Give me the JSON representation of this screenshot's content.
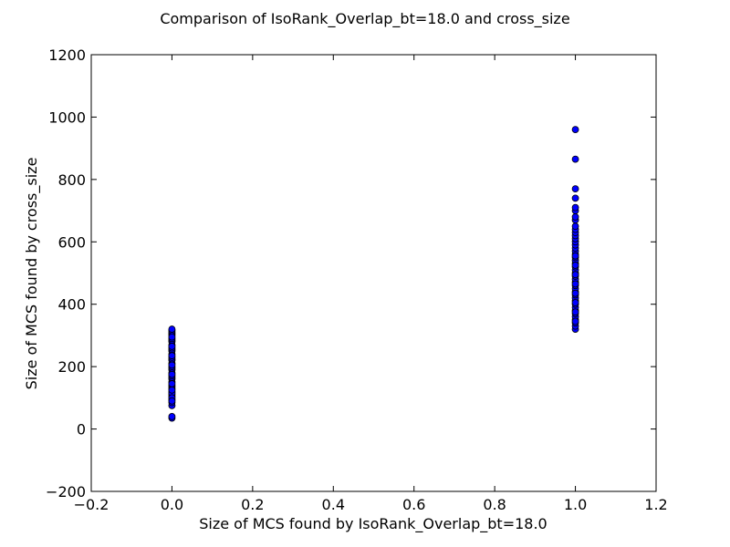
{
  "chart_data": {
    "type": "scatter",
    "title": "Comparison of IsoRank_Overlap_bt=18.0 and cross_size",
    "xlabel": "Size of MCS found by IsoRank_Overlap_bt=18.0",
    "ylabel": "Size of MCS found by cross_size",
    "xlim": [
      -0.2,
      1.2
    ],
    "ylim": [
      -200,
      1200
    ],
    "xticks": [
      -0.2,
      0.0,
      0.2,
      0.4,
      0.6,
      0.8,
      1.0,
      1.2
    ],
    "yticks": [
      -200,
      0,
      200,
      400,
      600,
      800,
      1000,
      1200
    ],
    "xtick_labels": [
      "−0.2",
      "0.0",
      "0.2",
      "0.4",
      "0.6",
      "0.8",
      "1.0",
      "1.2"
    ],
    "ytick_labels": [
      "−200",
      "0",
      "200",
      "400",
      "600",
      "800",
      "1000",
      "1200"
    ],
    "grid": false,
    "marker_color": "#0000ff",
    "marker_edge": "#000000",
    "series": [
      {
        "x": [
          0,
          0,
          0,
          0,
          0,
          0,
          0,
          0,
          0,
          0,
          0,
          0,
          0,
          0,
          0,
          0,
          0,
          0,
          0,
          0,
          0,
          0,
          0,
          0,
          0,
          0,
          0,
          0,
          0,
          0,
          0,
          0,
          0,
          0,
          0,
          0,
          0,
          0,
          0,
          0,
          0,
          0,
          0,
          0,
          0,
          0
        ],
        "y": [
          35,
          40,
          75,
          85,
          95,
          105,
          110,
          120,
          130,
          135,
          140,
          150,
          160,
          165,
          170,
          180,
          190,
          195,
          200,
          210,
          220,
          225,
          230,
          240,
          250,
          255,
          260,
          270,
          280,
          285,
          290,
          300,
          305,
          310,
          315,
          320,
          145,
          115,
          100,
          175,
          205,
          235,
          265,
          295,
          90,
          125
        ]
      },
      {
        "x": [
          1,
          1,
          1,
          1,
          1,
          1,
          1,
          1,
          1,
          1,
          1,
          1,
          1,
          1,
          1,
          1,
          1,
          1,
          1,
          1,
          1,
          1,
          1,
          1,
          1,
          1,
          1,
          1,
          1,
          1,
          1,
          1,
          1,
          1,
          1,
          1,
          1,
          1,
          1,
          1,
          1,
          1,
          1,
          1,
          1,
          1,
          1,
          1,
          1,
          1
        ],
        "y": [
          320,
          330,
          340,
          350,
          360,
          370,
          380,
          390,
          400,
          410,
          420,
          430,
          440,
          450,
          460,
          470,
          480,
          490,
          500,
          510,
          520,
          530,
          540,
          550,
          560,
          570,
          580,
          590,
          600,
          610,
          620,
          630,
          640,
          650,
          670,
          680,
          700,
          710,
          740,
          770,
          865,
          960,
          345,
          375,
          405,
          435,
          465,
          495,
          525,
          555
        ]
      }
    ]
  }
}
